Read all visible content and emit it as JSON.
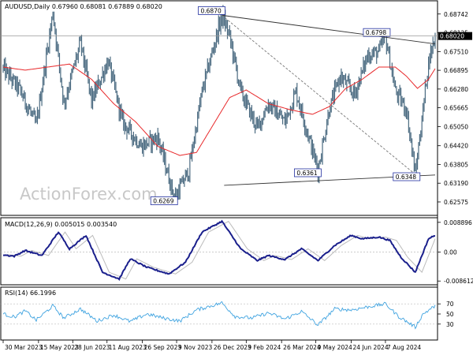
{
  "chart_data": {
    "type": "candlestick",
    "main": {
      "header": "AUDUSD,Daily  0.67960 0.68081 0.67889 0.68020",
      "last_price": "0.68020",
      "ylim": [
        0.6216,
        0.6915
      ],
      "y_ticks": [
        "0.68742",
        "0.68125",
        "0.67510",
        "0.66895",
        "0.66280",
        "0.65665",
        "0.65050",
        "0.64420",
        "0.63805",
        "0.63190",
        "0.62575"
      ],
      "y_tick_values": [
        0.68742,
        0.68125,
        0.6751,
        0.66895,
        0.6628,
        0.65665,
        0.6505,
        0.6442,
        0.63805,
        0.6319,
        0.62575
      ],
      "annotations": [
        {
          "label": "0.6870",
          "bar": 198,
          "value": 0.687
        },
        {
          "label": "0.6798",
          "bar": 346,
          "value": 0.6798
        },
        {
          "label": "0.6361",
          "bar": 285,
          "value": 0.6361
        },
        {
          "label": "0.6348",
          "bar": 373,
          "value": 0.6348
        },
        {
          "label": "0.6269",
          "bar": 155,
          "value": 0.6269
        }
      ],
      "trendlines": [
        {
          "from": [
            198,
            0.687
          ],
          "to": [
            391,
            0.6776
          ],
          "style": "solid"
        },
        {
          "from": [
            200,
            0.6312
          ],
          "to": [
            391,
            0.6346
          ],
          "style": "solid"
        },
        {
          "from": [
            198,
            0.687
          ],
          "to": [
            373,
            0.6348
          ],
          "style": "dashed"
        }
      ],
      "key_points": [
        [
          0,
          0.6695
        ],
        [
          15,
          0.6625
        ],
        [
          30,
          0.651
        ],
        [
          45,
          0.688
        ],
        [
          55,
          0.658
        ],
        [
          70,
          0.678
        ],
        [
          80,
          0.659
        ],
        [
          95,
          0.672
        ],
        [
          108,
          0.652
        ],
        [
          125,
          0.644
        ],
        [
          140,
          0.647
        ],
        [
          155,
          0.6269
        ],
        [
          168,
          0.636
        ],
        [
          180,
          0.662
        ],
        [
          198,
          0.687
        ],
        [
          205,
          0.68
        ],
        [
          215,
          0.662
        ],
        [
          230,
          0.65
        ],
        [
          240,
          0.658
        ],
        [
          255,
          0.652
        ],
        [
          265,
          0.662
        ],
        [
          275,
          0.649
        ],
        [
          285,
          0.6361
        ],
        [
          295,
          0.656
        ],
        [
          305,
          0.667
        ],
        [
          318,
          0.661
        ],
        [
          330,
          0.674
        ],
        [
          340,
          0.675
        ],
        [
          346,
          0.6798
        ],
        [
          355,
          0.662
        ],
        [
          365,
          0.656
        ],
        [
          373,
          0.6348
        ],
        [
          380,
          0.656
        ],
        [
          385,
          0.672
        ],
        [
          391,
          0.6802
        ]
      ],
      "ma_points": [
        [
          0,
          0.67
        ],
        [
          20,
          0.669
        ],
        [
          40,
          0.67
        ],
        [
          60,
          0.671
        ],
        [
          80,
          0.666
        ],
        [
          100,
          0.658
        ],
        [
          120,
          0.652
        ],
        [
          140,
          0.644
        ],
        [
          160,
          0.641
        ],
        [
          175,
          0.642
        ],
        [
          190,
          0.651
        ],
        [
          205,
          0.66
        ],
        [
          220,
          0.6625
        ],
        [
          240,
          0.658
        ],
        [
          260,
          0.656
        ],
        [
          280,
          0.6545
        ],
        [
          295,
          0.657
        ],
        [
          310,
          0.663
        ],
        [
          325,
          0.666
        ],
        [
          340,
          0.67
        ],
        [
          355,
          0.67
        ],
        [
          365,
          0.667
        ],
        [
          375,
          0.663
        ],
        [
          385,
          0.666
        ],
        [
          391,
          0.6695
        ]
      ]
    },
    "macd": {
      "label": "MACD(12,26,9) 0.005015 0.003540",
      "ylim": [
        -0.0095,
        0.0098
      ],
      "y_ticks": [
        "0.008896",
        "0.00",
        "-0.008612"
      ],
      "y_tick_values": [
        0.008896,
        0.0,
        -0.008612
      ],
      "key_points": [
        [
          0,
          -0.0008
        ],
        [
          10,
          -0.0012
        ],
        [
          20,
          0.0005
        ],
        [
          35,
          -0.001
        ],
        [
          50,
          0.006
        ],
        [
          60,
          0.001
        ],
        [
          75,
          0.005
        ],
        [
          90,
          -0.006
        ],
        [
          105,
          -0.008
        ],
        [
          115,
          -0.002
        ],
        [
          130,
          -0.0045
        ],
        [
          150,
          -0.0065
        ],
        [
          165,
          -0.003
        ],
        [
          180,
          0.006
        ],
        [
          198,
          0.0092
        ],
        [
          215,
          0.001
        ],
        [
          230,
          -0.0025
        ],
        [
          240,
          -0.001
        ],
        [
          255,
          -0.0022
        ],
        [
          270,
          0.001
        ],
        [
          285,
          -0.0025
        ],
        [
          300,
          0.002
        ],
        [
          315,
          0.005
        ],
        [
          325,
          0.004
        ],
        [
          340,
          0.0045
        ],
        [
          350,
          0.0035
        ],
        [
          360,
          -0.0015
        ],
        [
          373,
          -0.006
        ],
        [
          385,
          0.004
        ],
        [
          391,
          0.005
        ]
      ]
    },
    "rsi": {
      "label": "RSI(14) 66.1996",
      "ylim": [
        0,
        100
      ],
      "y_ticks": [
        "70",
        "50",
        "30"
      ],
      "y_tick_values": [
        70,
        50,
        30
      ],
      "key_points": [
        [
          0,
          50
        ],
        [
          10,
          44
        ],
        [
          20,
          56
        ],
        [
          30,
          38
        ],
        [
          45,
          66
        ],
        [
          55,
          42
        ],
        [
          70,
          60
        ],
        [
          85,
          36
        ],
        [
          100,
          48
        ],
        [
          115,
          35
        ],
        [
          130,
          50
        ],
        [
          145,
          42
        ],
        [
          160,
          36
        ],
        [
          175,
          58
        ],
        [
          198,
          72
        ],
        [
          210,
          45
        ],
        [
          225,
          42
        ],
        [
          240,
          52
        ],
        [
          255,
          40
        ],
        [
          270,
          55
        ],
        [
          285,
          28
        ],
        [
          300,
          60
        ],
        [
          315,
          58
        ],
        [
          330,
          64
        ],
        [
          346,
          70
        ],
        [
          358,
          45
        ],
        [
          373,
          24
        ],
        [
          380,
          50
        ],
        [
          391,
          66
        ]
      ]
    },
    "x_labels": [
      "30 Mar 2023",
      "15 May 2023",
      "28 Jun 2023",
      "11 Aug 2023",
      "26 Sep 2023",
      "9 Nov 2023",
      "26 Dec 2023",
      "9 Feb 2024",
      "26 Mar 2024",
      "9 May 2024",
      "24 Jun 2024",
      "7 Aug 2024"
    ],
    "x_label_bars": [
      0,
      32,
      63,
      94,
      126,
      157,
      189,
      220,
      252,
      283,
      315,
      346
    ],
    "total_bars": 392,
    "watermark": "ActionForex.com"
  }
}
